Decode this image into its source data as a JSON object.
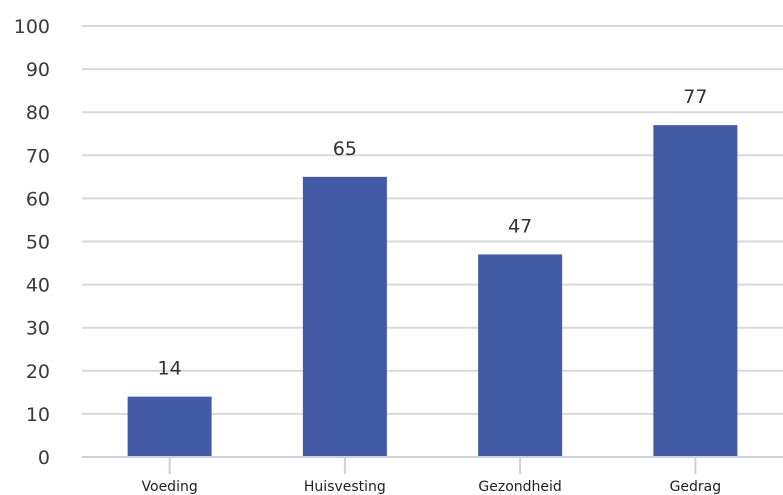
{
  "chart_data": {
    "type": "bar",
    "title": "",
    "xlabel": "",
    "ylabel": "",
    "categories": [
      "Voeding",
      "Huisvesting",
      "Gezondheid",
      "Gedrag"
    ],
    "values": [
      14,
      65,
      47,
      77
    ],
    "data_labels": [
      "14",
      "65",
      "47",
      "77"
    ],
    "ylim": [
      0,
      100
    ],
    "yticks": [
      0,
      10,
      20,
      30,
      40,
      50,
      60,
      70,
      80,
      90,
      100
    ],
    "grid": true,
    "legend": "none",
    "bar_color": "#435aa7"
  }
}
